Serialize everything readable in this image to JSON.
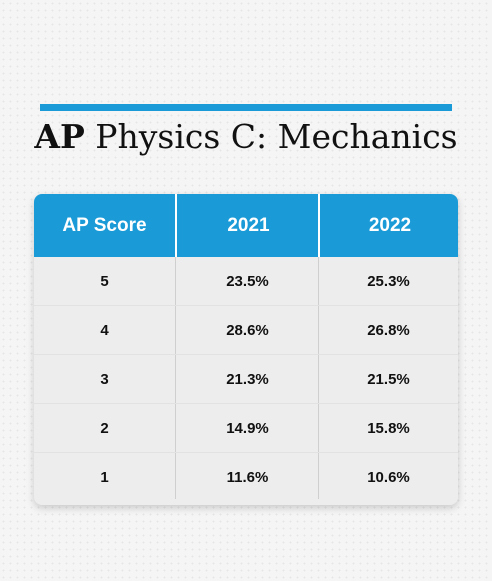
{
  "title_bold": "AP",
  "title_rest": " Physics C: Mechanics",
  "colors": {
    "accent": "#1a9bd7",
    "table_body": "#ededed",
    "text": "#111111"
  },
  "chart_data": {
    "type": "table",
    "title": "AP Physics C: Mechanics",
    "columns": [
      "AP Score",
      "2021",
      "2022"
    ],
    "rows": [
      [
        "5",
        "23.5%",
        "25.3%"
      ],
      [
        "4",
        "28.6%",
        "26.8%"
      ],
      [
        "3",
        "21.3%",
        "21.5%"
      ],
      [
        "2",
        "14.9%",
        "15.8%"
      ],
      [
        "1",
        "11.6%",
        "10.6%"
      ]
    ]
  }
}
